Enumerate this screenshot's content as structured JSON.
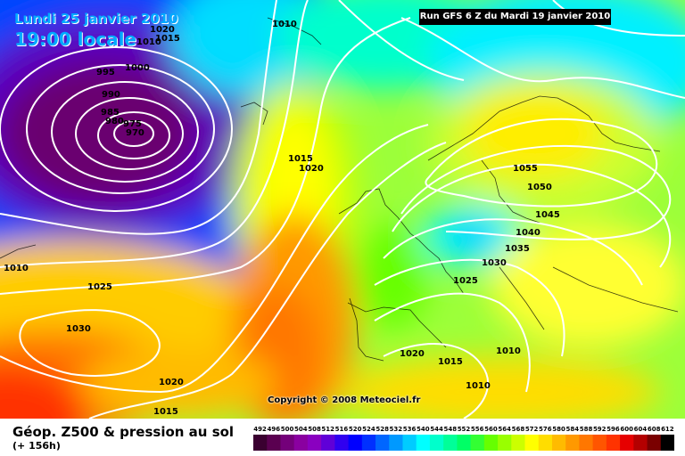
{
  "header": {
    "date_label": "Lundi 25 janvier 2010",
    "time_label": "19:00 locale",
    "run_label": "Run GFS 6 Z du Mardi 19 janvier 2010"
  },
  "footer": {
    "title": "Géop. Z500 & pression au sol",
    "subtitle": "(+ 156h)",
    "copyright": "Copyright © 2008 Meteociel.fr"
  },
  "isobar_labels": [
    "1010",
    "1020",
    "1015",
    "1000",
    "995",
    "990",
    "985",
    "980",
    "975",
    "970",
    "1010",
    "1015",
    "1020",
    "1010",
    "1025",
    "1030",
    "1020",
    "1015",
    "1055",
    "1050",
    "1045",
    "1040",
    "1035",
    "1030",
    "1025",
    "1020",
    "1015",
    "1010",
    "1010"
  ],
  "scale": {
    "values": [
      "492",
      "496",
      "500",
      "504",
      "508",
      "512",
      "516",
      "520",
      "524",
      "528",
      "532",
      "536",
      "540",
      "544",
      "548",
      "552",
      "556",
      "560",
      "564",
      "568",
      "572",
      "576",
      "580",
      "584",
      "588",
      "592",
      "596",
      "600",
      "604",
      "608",
      "612"
    ],
    "colors": [
      "#3a0030",
      "#5a0050",
      "#74007a",
      "#8a00a0",
      "#8a00c0",
      "#6000d8",
      "#3000f0",
      "#0000ff",
      "#0030ff",
      "#0066ff",
      "#0099ff",
      "#00ccff",
      "#00ffff",
      "#00ffcc",
      "#00ff99",
      "#00ff66",
      "#33ff33",
      "#66ff00",
      "#99ff00",
      "#ccff00",
      "#ffff00",
      "#ffdd00",
      "#ffbb00",
      "#ff9900",
      "#ff7700",
      "#ff5500",
      "#ff3300",
      "#e60000",
      "#b40000",
      "#7a0000",
      "#000000"
    ]
  }
}
